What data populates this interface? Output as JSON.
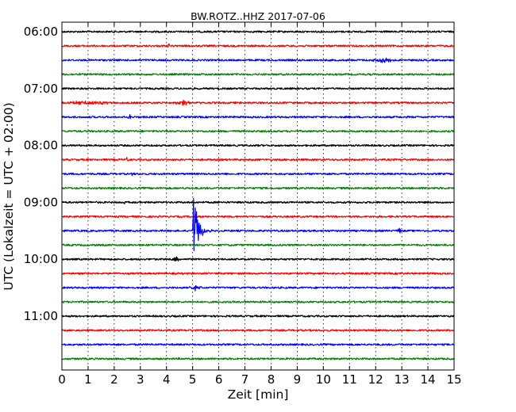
{
  "chart_data": {
    "type": "line",
    "title": "BW.ROTZ..HHZ 2017-07-06",
    "xlabel": "Zeit  [min]",
    "ylabel": "UTC (Lokalzeit = UTC + 02:00)",
    "xlim": [
      0,
      15
    ],
    "x_ticks": [
      0,
      1,
      2,
      3,
      4,
      5,
      6,
      7,
      8,
      9,
      10,
      11,
      12,
      13,
      14,
      15
    ],
    "x_tick_labels": [
      "0",
      "1",
      "2",
      "3",
      "4",
      "5",
      "6",
      "7",
      "8",
      "9",
      "10",
      "11",
      "12",
      "13",
      "14",
      "15"
    ],
    "y_tick_labels": [
      {
        "label": "06:00",
        "row": 0
      },
      {
        "label": "07:00",
        "row": 4
      },
      {
        "label": "08:00",
        "row": 8
      },
      {
        "label": "09:00",
        "row": 12
      },
      {
        "label": "10:00",
        "row": 16
      },
      {
        "label": "11:00",
        "row": 20
      }
    ],
    "grid": "vertical dotted",
    "row_colors": [
      "#000000",
      "#ff0000",
      "#0000ff",
      "#008000"
    ],
    "traces": [
      {
        "start": "06:00",
        "color": "#000000",
        "events": []
      },
      {
        "start": "06:15",
        "color": "#ff0000",
        "events": [
          {
            "t": 4.1,
            "amp": 2
          }
        ]
      },
      {
        "start": "06:30",
        "color": "#0000ff",
        "events": [
          {
            "t": 12.3,
            "amp": 2.5,
            "dur": 1.2
          }
        ]
      },
      {
        "start": "06:45",
        "color": "#008000",
        "events": []
      },
      {
        "start": "07:00",
        "color": "#000000",
        "events": []
      },
      {
        "start": "07:15",
        "color": "#ff0000",
        "events": [
          {
            "t": 1.0,
            "amp": 2,
            "dur": 2.5
          },
          {
            "t": 4.6,
            "amp": 3,
            "dur": 0.9
          },
          {
            "t": 14.1,
            "amp": 2
          }
        ]
      },
      {
        "start": "07:30",
        "color": "#0000ff",
        "events": [
          {
            "t": 2.6,
            "amp": 3
          }
        ]
      },
      {
        "start": "07:45",
        "color": "#008000",
        "events": []
      },
      {
        "start": "08:00",
        "color": "#000000",
        "events": []
      },
      {
        "start": "08:15",
        "color": "#ff0000",
        "events": [
          {
            "t": 2.5,
            "amp": 3
          }
        ]
      },
      {
        "start": "08:30",
        "color": "#0000ff",
        "events": [
          {
            "t": 2.7,
            "amp": 2
          }
        ]
      },
      {
        "start": "08:45",
        "color": "#008000",
        "events": []
      },
      {
        "start": "09:00",
        "color": "#000000",
        "events": [
          {
            "t": 2.4,
            "amp": 2.5
          }
        ]
      },
      {
        "start": "09:15",
        "color": "#ff0000",
        "events": []
      },
      {
        "start": "09:30",
        "color": "#0000ff",
        "events": [
          {
            "t": 5.0,
            "amp": 60,
            "dur": 0.8,
            "quake": true
          },
          {
            "t": 12.9,
            "amp": 4
          }
        ]
      },
      {
        "start": "09:45",
        "color": "#008000",
        "events": []
      },
      {
        "start": "10:00",
        "color": "#000000",
        "events": [
          {
            "t": 4.4,
            "amp": 2.5,
            "dur": 0.6
          }
        ]
      },
      {
        "start": "10:15",
        "color": "#ff0000",
        "events": []
      },
      {
        "start": "10:30",
        "color": "#0000ff",
        "events": [
          {
            "t": 5.1,
            "amp": 3,
            "dur": 0.6
          }
        ]
      },
      {
        "start": "10:45",
        "color": "#008000",
        "events": []
      },
      {
        "start": "11:00",
        "color": "#000000",
        "events": []
      },
      {
        "start": "11:15",
        "color": "#ff0000",
        "events": []
      },
      {
        "start": "11:30",
        "color": "#0000ff",
        "events": []
      },
      {
        "start": "11:45",
        "color": "#008000",
        "events": []
      }
    ]
  }
}
